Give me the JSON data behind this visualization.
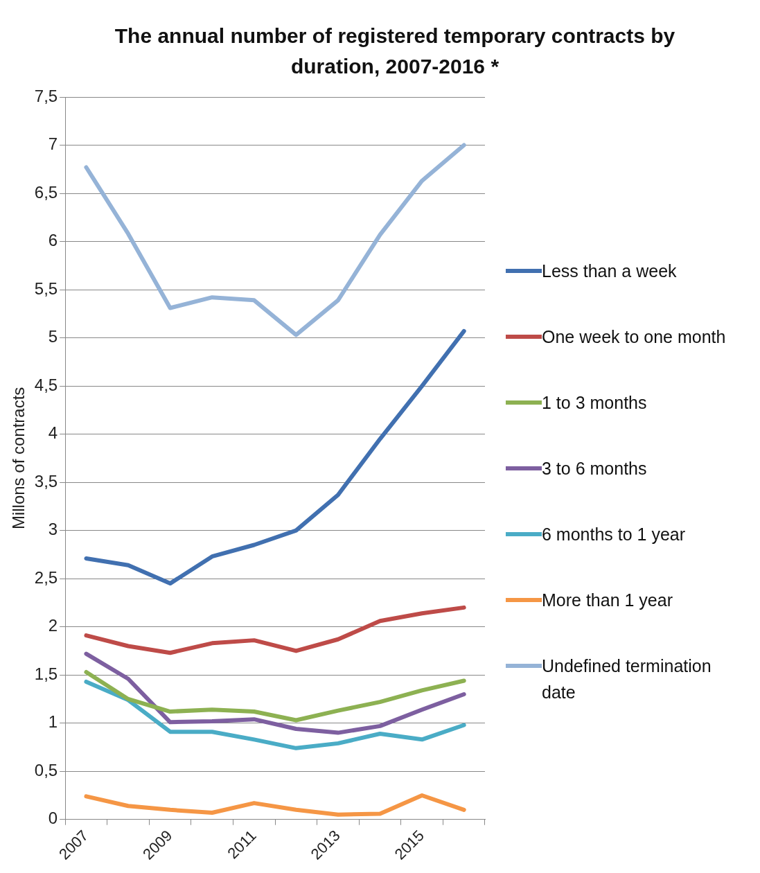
{
  "chart_data": {
    "type": "line",
    "title": "The annual number of registered temporary contracts by duration, 2007-2016 *",
    "ylabel": "Millons of contracts",
    "categories": [
      "2007",
      null,
      "2009",
      null,
      "2011",
      null,
      "2013",
      null,
      "2015",
      null
    ],
    "series": [
      {
        "name": "Less than a week",
        "color": "#4170b0",
        "values": [
          2.71,
          2.64,
          2.45,
          2.73,
          2.85,
          3.0,
          3.37,
          3.95,
          4.5,
          5.07
        ]
      },
      {
        "name": "One week to one month",
        "color": "#be4b48",
        "values": [
          1.91,
          1.8,
          1.73,
          1.83,
          1.86,
          1.75,
          1.87,
          2.06,
          2.14,
          2.2
        ]
      },
      {
        "name": "1 to 3 months",
        "color": "#8db152",
        "values": [
          1.53,
          1.25,
          1.12,
          1.14,
          1.12,
          1.03,
          1.13,
          1.22,
          1.34,
          1.44
        ]
      },
      {
        "name": "3 to 6 months",
        "color": "#7d5fa0",
        "values": [
          1.72,
          1.46,
          1.01,
          1.02,
          1.04,
          0.94,
          0.9,
          0.97,
          1.14,
          1.3
        ]
      },
      {
        "name": "6 months to 1 year",
        "color": "#4aacc6",
        "values": [
          1.43,
          1.24,
          0.91,
          0.91,
          0.83,
          0.74,
          0.79,
          0.89,
          0.83,
          0.98
        ]
      },
      {
        "name": "More than 1 year",
        "color": "#f59645",
        "values": [
          0.24,
          0.14,
          0.1,
          0.07,
          0.17,
          0.1,
          0.05,
          0.06,
          0.25,
          0.1
        ]
      },
      {
        "name": "Undefined termination date",
        "color": "#95b3d7",
        "values": [
          6.77,
          6.08,
          5.31,
          5.42,
          5.39,
          5.03,
          5.39,
          6.07,
          6.63,
          7.0
        ]
      }
    ],
    "ylim": [
      0,
      7.5
    ],
    "yticks": [
      0,
      {
        "value": 0.5,
        "label": "0,5"
      },
      1,
      {
        "value": 1.5,
        "label": "1,5"
      },
      2,
      {
        "value": 2.5,
        "label": "2,5"
      },
      3,
      {
        "value": 3.5,
        "label": "3,5"
      },
      4,
      {
        "value": 4.5,
        "label": "4,5"
      },
      5,
      {
        "value": 5.5,
        "label": "5,5"
      },
      6,
      {
        "value": 6.5,
        "label": "6,5"
      },
      7,
      {
        "value": 7.5,
        "label": "7,5"
      }
    ],
    "grid": "y",
    "legend": "right",
    "marker": "none",
    "line_style": "solid"
  }
}
